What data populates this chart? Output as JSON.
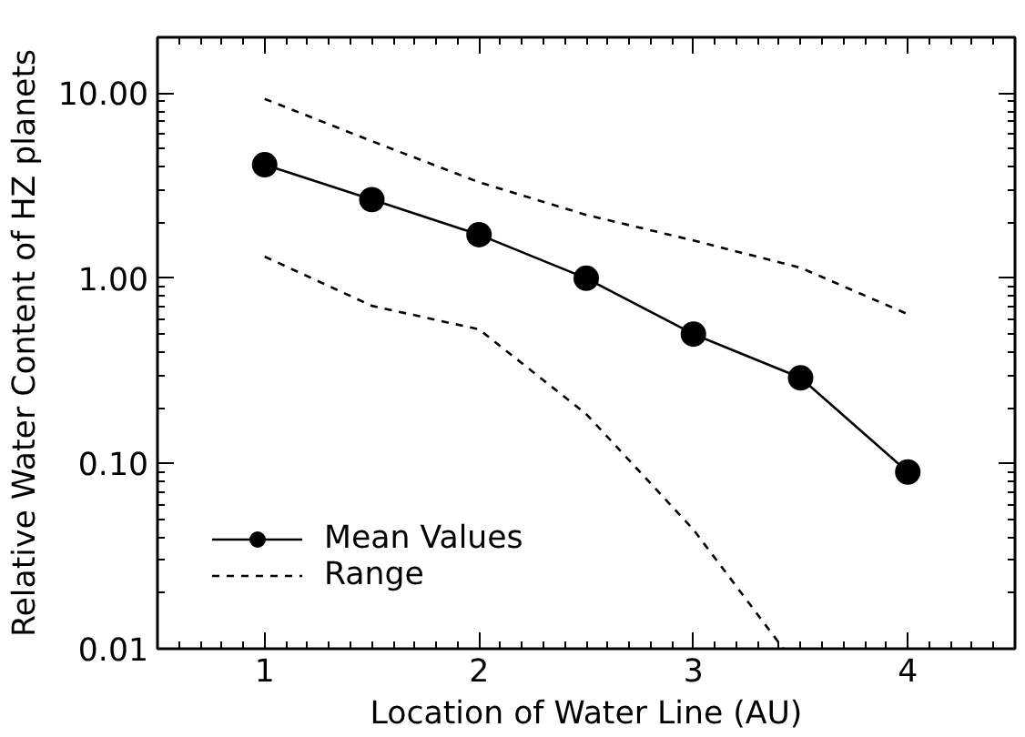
{
  "chart_data": {
    "type": "line",
    "xlabel": "Location of Water Line (AU)",
    "ylabel": "Relative Water Content of HZ planets",
    "log": "y",
    "xlim": [
      0.5,
      4.5
    ],
    "ylim": [
      0.01,
      20
    ],
    "xticks": [
      1,
      2,
      3,
      4
    ],
    "yticks": [
      {
        "value": 0.01,
        "label": "0.01"
      },
      {
        "value": 0.1,
        "label": "0.10"
      },
      {
        "value": 1,
        "label": "1.00"
      },
      {
        "value": 10,
        "label": "10.00"
      }
    ],
    "grid": false,
    "legend": "bottom left",
    "x": [
      1,
      1.5,
      2,
      2.5,
      3,
      3.5,
      4
    ],
    "series": [
      {
        "name": "Mean Values",
        "color": "#000000",
        "marker": "circle",
        "line_style": "solid",
        "values": [
          4.1,
          2.66,
          1.72,
          1.0,
          0.5,
          0.29,
          0.09
        ]
      },
      {
        "name": "Range",
        "color": "#000000",
        "marker": "none",
        "line_style": "dashed",
        "values": [
          9.3,
          5.5,
          3.3,
          2.2,
          1.6,
          1.14,
          0.64
        ]
      },
      {
        "color": "#000000",
        "marker": "none",
        "line_style": "dashed",
        "x": [
          1,
          1.5,
          2,
          2.5,
          3,
          3.42
        ],
        "values": [
          1.31,
          0.71,
          0.53,
          0.185,
          0.044,
          0.01
        ]
      }
    ]
  }
}
